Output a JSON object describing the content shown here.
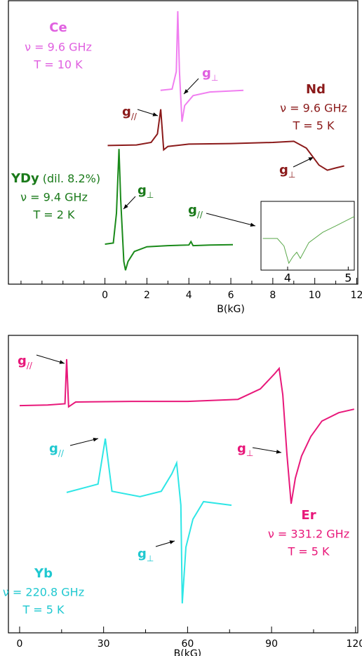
{
  "chart_data": [
    {
      "type": "line",
      "x_label": "B(kG)",
      "xlim": [
        -4.6,
        12.05
      ],
      "xticks": [
        0,
        2,
        4,
        6,
        8,
        10,
        12
      ],
      "minor_xticks": [
        -4,
        -3,
        -2,
        -1,
        1,
        3,
        5,
        7,
        9,
        11
      ],
      "ylim": [
        0,
        100
      ],
      "series": [
        {
          "name": "Ce",
          "color": "#f07ef0",
          "text_color": "#e060e0",
          "labels": [
            "ν = 9.6 GHz",
            "T = 10 K"
          ],
          "peak_labels": [
            {
              "text": "g",
              "sub": "⊥"
            }
          ],
          "x": [
            2.65,
            3.2,
            3.4,
            3.47,
            3.55,
            3.67,
            3.8,
            4.2,
            5.0,
            6.6
          ],
          "values": [
            68.4,
            68.8,
            75,
            96.3,
            75,
            57.3,
            63,
            66.5,
            67.8,
            68.4
          ]
        },
        {
          "name": "Nd",
          "color": "#8b1a1a",
          "text_color": "#8b1a1a",
          "labels": [
            "ν = 9.6 GHz",
            "T = 5 K"
          ],
          "peak_labels": [
            {
              "text": "g",
              "sub": "//"
            },
            {
              "text": "g",
              "sub": "⊥"
            }
          ],
          "x": [
            0.13,
            1.5,
            2.2,
            2.5,
            2.66,
            2.8,
            3.0,
            4,
            6,
            8,
            9,
            9.6,
            10.2,
            10.6,
            11.0,
            11.4
          ],
          "values": [
            48.9,
            49.1,
            50,
            53,
            61.7,
            47.4,
            48.6,
            49.4,
            49.6,
            50,
            50.4,
            48,
            42,
            40.2,
            41,
            41.7
          ]
        },
        {
          "name": "YDy",
          "subtitle": "(dil. 8.2%)",
          "color": "#1a8a1a",
          "text_color": "#1a7a1a",
          "labels": [
            "ν = 9.4 GHz",
            "T = 2 K"
          ],
          "peak_labels": [
            {
              "text": "g",
              "sub": "⊥"
            },
            {
              "text": "g",
              "sub": "//"
            }
          ],
          "x": [
            0,
            0.4,
            0.55,
            0.67,
            0.75,
            0.9,
            0.98,
            1.1,
            1.4,
            2,
            3,
            4.0,
            4.1,
            4.2,
            5,
            6.1
          ],
          "values": [
            14.1,
            14.5,
            25,
            47.7,
            30,
            8,
            4.9,
            8,
            11.5,
            13.2,
            13.6,
            13.8,
            15,
            13.6,
            13.8,
            13.9
          ]
        }
      ],
      "inset": {
        "xlim": [
          3.56,
          5.1
        ],
        "xticks": [
          4,
          5
        ],
        "ylim": [
          0,
          100
        ],
        "color": "#5aa84a",
        "x": [
          3.59,
          3.83,
          3.94,
          4.02,
          4.09,
          4.15,
          4.21,
          4.35,
          4.58,
          4.81,
          5.1
        ],
        "values": [
          46,
          46,
          35,
          10,
          20,
          26,
          17,
          40,
          55,
          65,
          78
        ]
      }
    },
    {
      "type": "line",
      "x_label": "B(kG)",
      "xlim": [
        -4,
        120.8
      ],
      "xticks": [
        0,
        30,
        60,
        90,
        120
      ],
      "minor_xticks": [
        15,
        45,
        75,
        105
      ],
      "ylim": [
        0,
        100
      ],
      "series": [
        {
          "name": "Er",
          "color": "#e8187a",
          "text_color": "#e8187a",
          "labels": [
            "ν = 331.2 GHz",
            "T = 5 K"
          ],
          "peak_labels": [
            {
              "text": "g",
              "sub": "//"
            },
            {
              "text": "g",
              "sub": "⊥"
            }
          ],
          "x": [
            0,
            10,
            16.2,
            16.8,
            17.5,
            20,
            40,
            60,
            78,
            86,
            91,
            92.7,
            94,
            95.5,
            97,
            98.5,
            100.7,
            104,
            108,
            114,
            119.5
          ],
          "values": [
            76.4,
            76.6,
            77,
            92,
            76,
            77.6,
            77.8,
            77.8,
            78.5,
            82,
            87,
            88.9,
            80,
            60,
            43.4,
            52,
            59.4,
            66,
            71.2,
            74,
            75.2
          ]
        },
        {
          "name": "Yb",
          "color": "#2ee6e6",
          "text_color": "#20c8d0",
          "labels": [
            "ν = 220.8 GHz",
            "T = 5 K"
          ],
          "peak_labels": [
            {
              "text": "g",
              "sub": "//"
            },
            {
              "text": "g",
              "sub": "⊥"
            }
          ],
          "x": [
            16.8,
            28,
            30.6,
            33,
            43,
            50.6,
            54.4,
            56.1,
            57.6,
            58.1,
            59.4,
            61.9,
            65.7,
            75.7
          ],
          "values": [
            47.2,
            50,
            65.3,
            47.6,
            45.8,
            47.6,
            53.5,
            57.1,
            42.9,
            9.9,
            28.8,
            38.2,
            44.1,
            42.9
          ]
        }
      ]
    }
  ]
}
